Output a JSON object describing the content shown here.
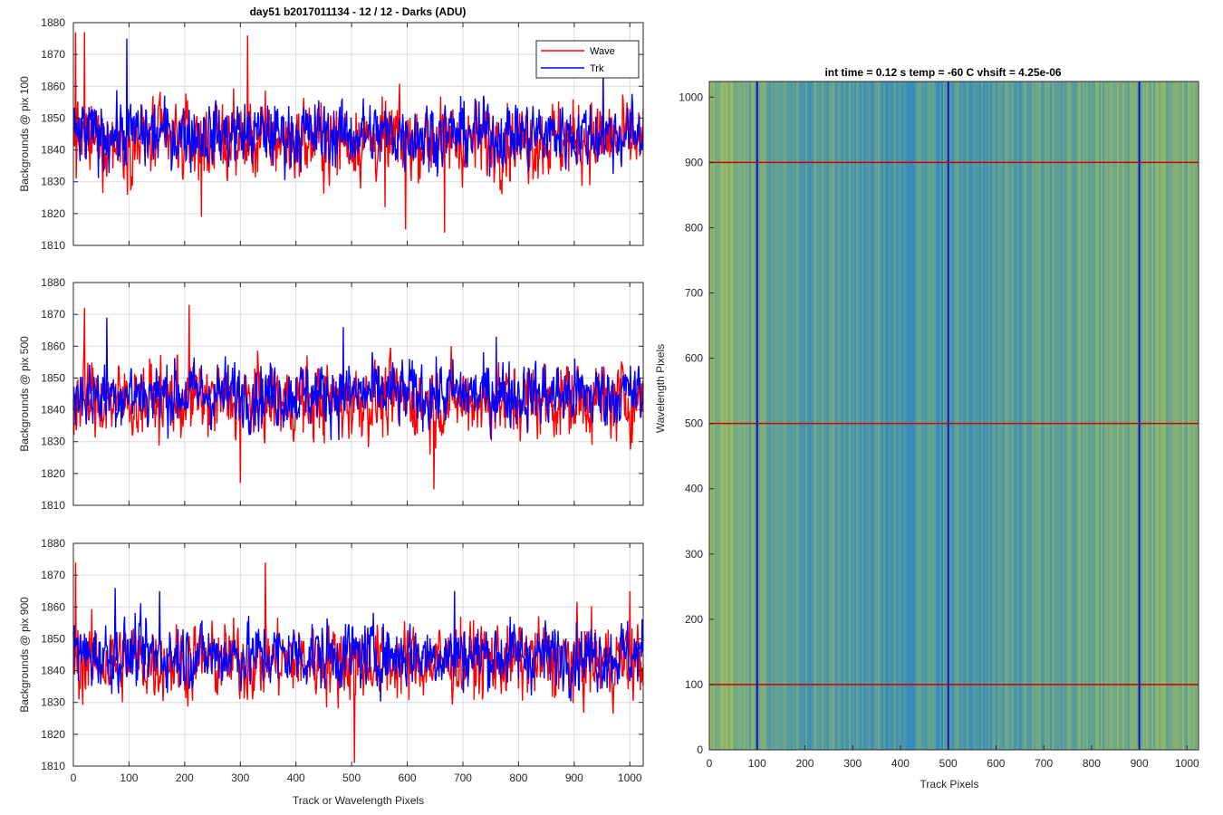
{
  "figure_title": "day51 b2017011134 - 12 / 12 - Darks (ADU)",
  "legend": {
    "items": [
      {
        "label": "Wave",
        "color": "#ff0000"
      },
      {
        "label": "Trk",
        "color": "#0000ff"
      }
    ],
    "placement": "top-right"
  },
  "chart_data": [
    {
      "type": "line",
      "title": "day51 b2017011134 - 12 / 12 - Darks (ADU)",
      "xlabel": "",
      "ylabel": "Backgrounds @ pix 100",
      "xlim": [
        0,
        1024
      ],
      "ylim": [
        1810,
        1880
      ],
      "xticks": [
        0,
        100,
        200,
        300,
        400,
        500,
        600,
        700,
        800,
        900,
        1000
      ],
      "yticks": [
        1810,
        1820,
        1830,
        1840,
        1850,
        1860,
        1870,
        1880
      ],
      "grid": true,
      "series": [
        {
          "name": "Wave",
          "color": "#ff0000",
          "mean": 1843,
          "noise": 7.5,
          "spike_points": [
            [
              4,
              1877
            ],
            [
              20,
              1877
            ],
            [
              313,
              1876
            ],
            [
              230,
              1819
            ],
            [
              597,
              1815
            ],
            [
              667,
              1814
            ],
            [
              560,
              1822
            ]
          ]
        },
        {
          "name": "Trk",
          "color": "#0000ff",
          "mean": 1845,
          "noise": 6.5,
          "spike_points": [
            [
              96,
              1875
            ],
            [
              952,
              1866
            ]
          ]
        }
      ]
    },
    {
      "type": "line",
      "title": "",
      "xlabel": "",
      "ylabel": "Backgrounds @ pix 500",
      "xlim": [
        0,
        1024
      ],
      "ylim": [
        1810,
        1880
      ],
      "xticks": [
        0,
        100,
        200,
        300,
        400,
        500,
        600,
        700,
        800,
        900,
        1000
      ],
      "yticks": [
        1810,
        1820,
        1830,
        1840,
        1850,
        1860,
        1870,
        1880
      ],
      "grid": true,
      "series": [
        {
          "name": "Wave",
          "color": "#ff0000",
          "mean": 1843,
          "noise": 7.5,
          "spike_points": [
            [
              20,
              1872
            ],
            [
              208,
              1873
            ],
            [
              300,
              1817
            ],
            [
              648,
              1815
            ]
          ]
        },
        {
          "name": "Trk",
          "color": "#0000ff",
          "mean": 1845,
          "noise": 6.5,
          "spike_points": [
            [
              60,
              1869
            ],
            [
              485,
              1866
            ],
            [
              760,
              1863
            ]
          ]
        }
      ]
    },
    {
      "type": "line",
      "title": "",
      "xlabel": "Track or Wavelength Pixels",
      "ylabel": "Backgrounds @ pix 900",
      "xlim": [
        0,
        1024
      ],
      "ylim": [
        1810,
        1880
      ],
      "xticks": [
        0,
        100,
        200,
        300,
        400,
        500,
        600,
        700,
        800,
        900,
        1000
      ],
      "yticks": [
        1810,
        1820,
        1830,
        1840,
        1850,
        1860,
        1870,
        1880
      ],
      "grid": true,
      "series": [
        {
          "name": "Wave",
          "color": "#ff0000",
          "mean": 1843,
          "noise": 7.5,
          "spike_points": [
            [
              4,
              1874
            ],
            [
              345,
              1874
            ],
            [
              505,
              1811
            ],
            [
              1000,
              1865
            ]
          ]
        },
        {
          "name": "Trk",
          "color": "#0000ff",
          "mean": 1845,
          "noise": 6.5,
          "spike_points": [
            [
              75,
              1866
            ],
            [
              155,
              1865
            ],
            [
              685,
              1865
            ]
          ]
        }
      ]
    },
    {
      "type": "heatmap",
      "title": "int time = 0.12 s   temp = -60 C   vhsift = 4.25e-06",
      "xlabel": "Track Pixels",
      "ylabel": "Wavelength Pixels",
      "xlim": [
        0,
        1024
      ],
      "ylim": [
        0,
        1024
      ],
      "xticks": [
        0,
        100,
        200,
        300,
        400,
        500,
        600,
        700,
        800,
        900,
        1000
      ],
      "yticks": [
        0,
        100,
        200,
        300,
        400,
        500,
        600,
        700,
        800,
        900,
        1000
      ],
      "colormap": "parula",
      "color_low": "#1a7fd4",
      "color_high": "#c8d13a",
      "vertical_markers": {
        "color": "#0000cc",
        "x": [
          100,
          500,
          900
        ]
      },
      "horizontal_markers": {
        "color": "#cc0000",
        "y": [
          100,
          500,
          900
        ]
      }
    }
  ]
}
